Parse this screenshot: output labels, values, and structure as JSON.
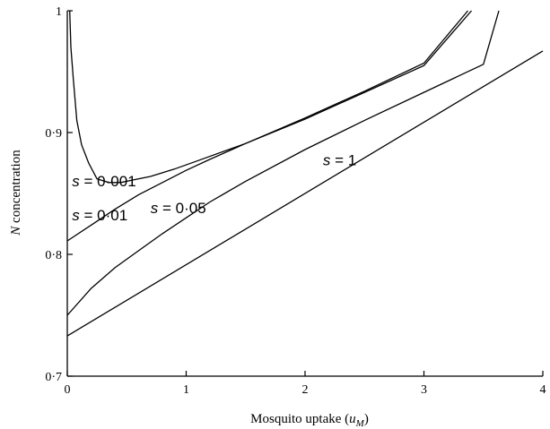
{
  "chart_data": {
    "type": "line",
    "xlabel": "Mosquito uptake (u_M)",
    "xlabel_parts": {
      "prefix": "Mosquito uptake (",
      "var": "u",
      "sub": "M",
      "suffix": ")"
    },
    "ylabel": "N concentration",
    "ylabel_parts": {
      "var": "N",
      "rest": " concentration"
    },
    "xlim": [
      0,
      4
    ],
    "ylim": [
      0.7,
      1.0
    ],
    "x_ticks": [
      0,
      1,
      2,
      3,
      4
    ],
    "x_tick_labels": [
      "0",
      "1",
      "2",
      "3",
      "4"
    ],
    "y_ticks": [
      0.7,
      0.8,
      0.9,
      1.0
    ],
    "y_tick_labels": [
      "0·7",
      "0·8",
      "0·9",
      "1"
    ],
    "grid": false,
    "series": [
      {
        "name": "s = 0·001",
        "label_text": "s = 0·001",
        "points": [
          [
            0.02,
            1.0
          ],
          [
            0.03,
            0.97
          ],
          [
            0.05,
            0.945
          ],
          [
            0.08,
            0.91
          ],
          [
            0.12,
            0.89
          ],
          [
            0.18,
            0.875
          ],
          [
            0.25,
            0.862
          ],
          [
            0.35,
            0.859
          ],
          [
            0.45,
            0.859
          ],
          [
            0.55,
            0.861
          ],
          [
            0.7,
            0.864
          ],
          [
            0.9,
            0.87
          ],
          [
            1.1,
            0.877
          ],
          [
            1.5,
            0.891
          ],
          [
            2.0,
            0.911
          ],
          [
            2.5,
            0.933
          ],
          [
            3.0,
            0.955
          ],
          [
            3.4,
            1.0
          ]
        ]
      },
      {
        "name": "s = 0·01",
        "label_text": "s = 0·01",
        "points": [
          [
            0.0,
            0.811
          ],
          [
            0.2,
            0.824
          ],
          [
            0.4,
            0.837
          ],
          [
            0.6,
            0.849
          ],
          [
            0.8,
            0.859
          ],
          [
            1.0,
            0.869
          ],
          [
            1.2,
            0.878
          ],
          [
            1.5,
            0.891
          ],
          [
            2.0,
            0.912
          ],
          [
            2.5,
            0.934
          ],
          [
            3.0,
            0.957
          ],
          [
            3.37,
            1.0
          ]
        ]
      },
      {
        "name": "s = 0·05",
        "label_text": "s = 0·05",
        "points": [
          [
            0.0,
            0.75
          ],
          [
            0.2,
            0.772
          ],
          [
            0.4,
            0.789
          ],
          [
            0.6,
            0.803
          ],
          [
            0.8,
            0.817
          ],
          [
            1.0,
            0.83
          ],
          [
            1.2,
            0.843
          ],
          [
            1.5,
            0.86
          ],
          [
            2.0,
            0.886
          ],
          [
            2.5,
            0.91
          ],
          [
            3.0,
            0.933
          ],
          [
            3.5,
            0.956
          ],
          [
            3.63,
            1.0
          ]
        ]
      },
      {
        "name": "s = 1",
        "label_text": "s = 1",
        "points": [
          [
            0.0,
            0.733
          ],
          [
            4.0,
            0.967
          ]
        ]
      }
    ]
  }
}
